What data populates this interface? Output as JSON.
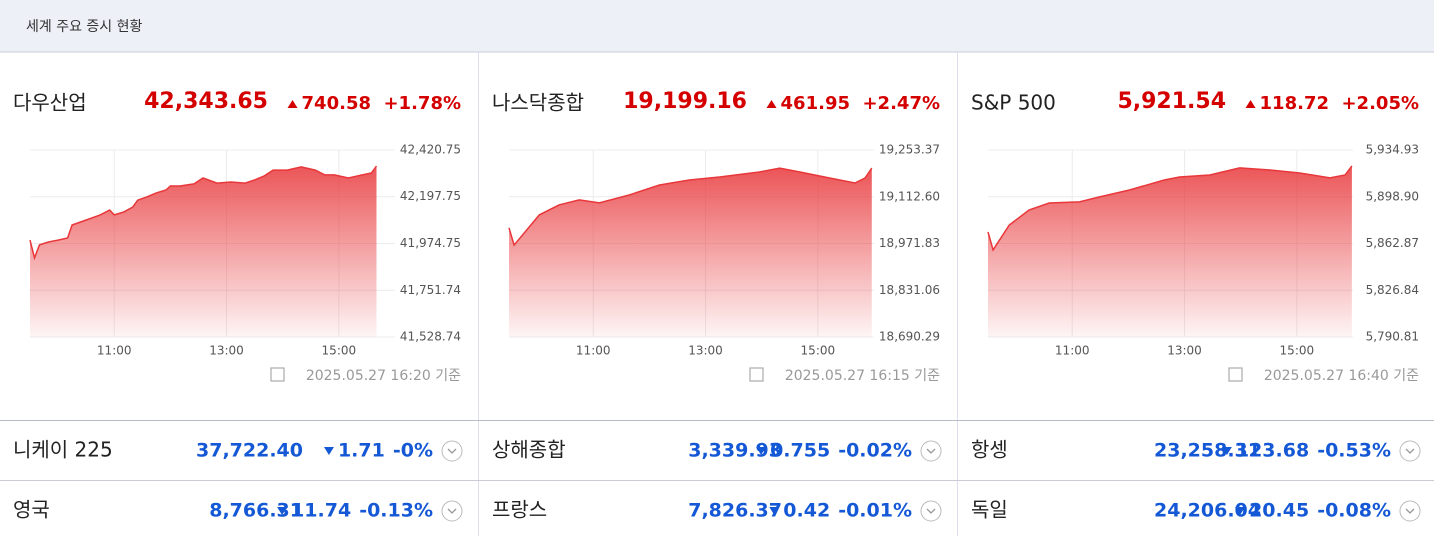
{
  "header": {
    "title": "세계 주요 증시 현황"
  },
  "panels": [
    {
      "name": "다우산업",
      "price": "42,343.65",
      "change": "740.58",
      "change_pct": "+1.78%",
      "timestamp": "2025.05.27 16:20 기준"
    },
    {
      "name": "나스닥종합",
      "price": "19,199.16",
      "change": "461.95",
      "change_pct": "+2.47%",
      "timestamp": "2025.05.27 16:15 기준"
    },
    {
      "name": "S&P 500",
      "price": "5,921.54",
      "change": "118.72",
      "change_pct": "+2.05%",
      "timestamp": "2025.05.27 16:40 기준"
    }
  ],
  "chart_data": [
    {
      "type": "area",
      "color": "#e8373a",
      "x": [
        9.5,
        9.58,
        9.67,
        9.83,
        10,
        10.17,
        10.25,
        10.5,
        10.75,
        10.92,
        11,
        11.17,
        11.33,
        11.42,
        11.58,
        11.75,
        11.92,
        12,
        12.17,
        12.42,
        12.58,
        12.83,
        13.08,
        13.33,
        13.5,
        13.67,
        13.83,
        14.08,
        14.33,
        14.58,
        14.75,
        14.92,
        15.17,
        15.42,
        15.58,
        15.67
      ],
      "values": [
        41991,
        41906,
        41968,
        41982,
        41991,
        42001,
        42063,
        42087,
        42111,
        42134,
        42111,
        42125,
        42149,
        42182,
        42197,
        42216,
        42230,
        42249,
        42249,
        42259,
        42287,
        42263,
        42268,
        42263,
        42278,
        42297,
        42325,
        42325,
        42340,
        42325,
        42302,
        42302,
        42287,
        42302,
        42311,
        42344
      ],
      "xlim": [
        9.5,
        16
      ],
      "xticks": [
        {
          "value": 11,
          "label": "11:00"
        },
        {
          "value": 13,
          "label": "13:00"
        },
        {
          "value": 15,
          "label": "15:00"
        }
      ],
      "ylim": [
        41528.74,
        42420.75
      ],
      "yticks": [
        {
          "value": 42420.75,
          "label": "42,420.75"
        },
        {
          "value": 42197.75,
          "label": "42,197.75"
        },
        {
          "value": 41974.75,
          "label": "41,974.75"
        },
        {
          "value": 41751.74,
          "label": "41,751.74"
        },
        {
          "value": 41528.74,
          "label": "41,528.74"
        }
      ],
      "grid": true
    },
    {
      "type": "area",
      "color": "#e8373a",
      "x": [
        9.5,
        9.59,
        10.04,
        10.39,
        10.75,
        11.11,
        11.64,
        12.18,
        12.71,
        13.25,
        13.96,
        14.32,
        14.68,
        15.21,
        15.66,
        15.84,
        15.96
      ],
      "values": [
        19019,
        18967,
        19058,
        19088,
        19103,
        19094,
        19118,
        19148,
        19163,
        19172,
        19187,
        19199,
        19187,
        19169,
        19154,
        19169,
        19199
      ],
      "xlim": [
        9.5,
        16
      ],
      "xticks": [
        {
          "value": 11,
          "label": "11:00"
        },
        {
          "value": 13,
          "label": "13:00"
        },
        {
          "value": 15,
          "label": "15:00"
        }
      ],
      "ylim": [
        18690.29,
        19253.37
      ],
      "yticks": [
        {
          "value": 19253.37,
          "label": "19,253.37"
        },
        {
          "value": 19112.6,
          "label": "19,112.60"
        },
        {
          "value": 18971.83,
          "label": "18,971.83"
        },
        {
          "value": 18831.06,
          "label": "18,831.06"
        },
        {
          "value": 18690.29,
          "label": "18,690.29"
        }
      ],
      "grid": true
    },
    {
      "type": "area",
      "color": "#e8373a",
      "x": [
        9.5,
        9.59,
        9.88,
        10.23,
        10.59,
        11.13,
        11.48,
        12.02,
        12.64,
        12.91,
        13.45,
        13.98,
        14.52,
        15.05,
        15.59,
        15.86,
        15.98
      ],
      "values": [
        5871.7,
        5857.9,
        5877.1,
        5888.7,
        5894.1,
        5894.9,
        5898.7,
        5904.1,
        5911.8,
        5914.1,
        5915.7,
        5921.1,
        5919.5,
        5917.2,
        5913.4,
        5915.7,
        5922.6
      ],
      "xlim": [
        9.5,
        16
      ],
      "xticks": [
        {
          "value": 11,
          "label": "11:00"
        },
        {
          "value": 13,
          "label": "13:00"
        },
        {
          "value": 15,
          "label": "15:00"
        }
      ],
      "ylim": [
        5790.81,
        5934.93
      ],
      "yticks": [
        {
          "value": 5934.93,
          "label": "5,934.93"
        },
        {
          "value": 5898.9,
          "label": "5,898.90"
        },
        {
          "value": 5862.87,
          "label": "5,862.87"
        },
        {
          "value": 5826.84,
          "label": "5,826.84"
        },
        {
          "value": 5790.81,
          "label": "5,790.81"
        }
      ],
      "grid": true
    }
  ],
  "markets": [
    {
      "name": "니케이 225",
      "price": "37,722.40",
      "change": "1.71",
      "change_pct": "-0%"
    },
    {
      "name": "상해종합",
      "price": "3,339.93",
      "change": "0.755",
      "change_pct": "-0.02%"
    },
    {
      "name": "항셍",
      "price": "23,258.31",
      "change": "123.68",
      "change_pct": "-0.53%"
    },
    {
      "name": "영국",
      "price": "8,766.31",
      "change": "11.74",
      "change_pct": "-0.13%"
    },
    {
      "name": "프랑스",
      "price": "7,826.37",
      "change": "0.42",
      "change_pct": "-0.01%"
    },
    {
      "name": "독일",
      "price": "24,206.04",
      "change": "20.45",
      "change_pct": "-0.08%"
    }
  ]
}
